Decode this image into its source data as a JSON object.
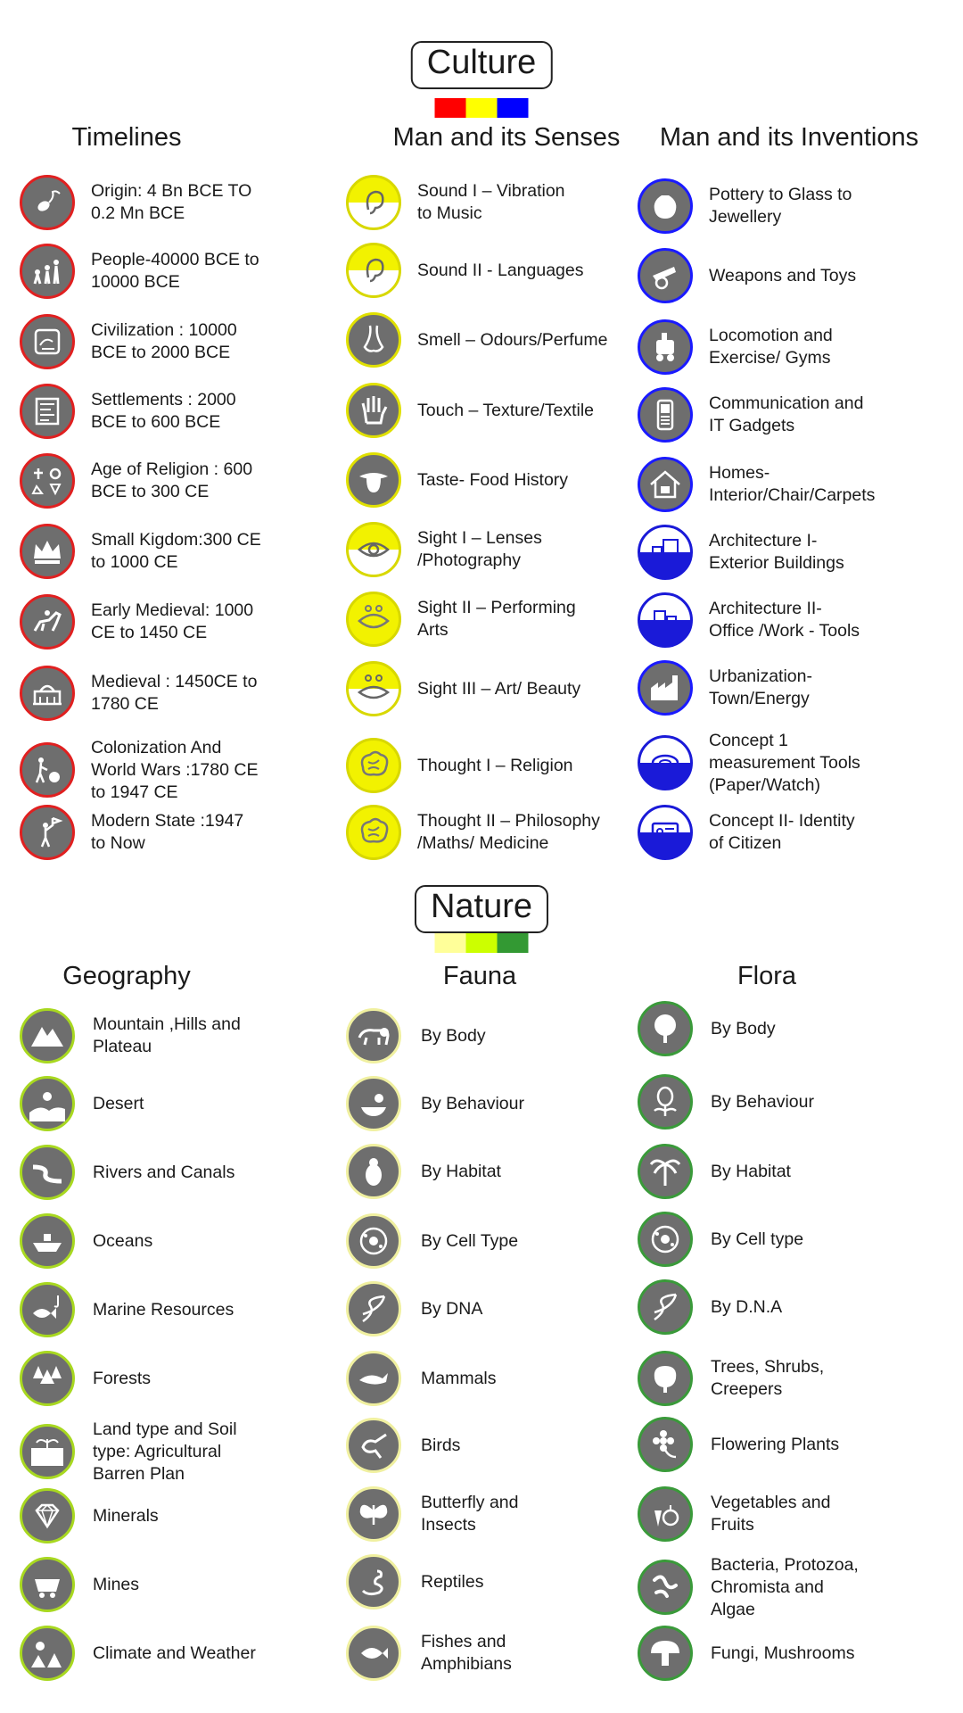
{
  "culture": {
    "title": "Culture",
    "swatches": [
      "#ff0000",
      "#ffff00",
      "#0000ff"
    ],
    "columns": [
      {
        "heading": "Timelines",
        "items": [
          {
            "label": "Origin: 4 Bn BCE TO\n0.2 Mn BCE",
            "icon": "sperm-cell-icon"
          },
          {
            "label": "People-40000 BCE to\n10000  BCE",
            "icon": "evolution-icon"
          },
          {
            "label": "Civilization :  10000\nBCE to 2000  BCE",
            "icon": "seal-tablet-icon"
          },
          {
            "label": "Settlements : 2000\nBCE to 600  BCE",
            "icon": "carved-stone-icon"
          },
          {
            "label": "Age of Religion :  600\nBCE to 300  CE",
            "icon": "religious-symbols-icon"
          },
          {
            "label": "Small Kigdom:300 CE\nto 1000  CE",
            "icon": "crown-icon"
          },
          {
            "label": "Early Medieval: 1000\nCE to 1450  CE",
            "icon": "horse-rider-icon"
          },
          {
            "label": "Medieval : 1450CE  to\n1780 CE",
            "icon": "palace-icon"
          },
          {
            "label": "Colonization And\nWorld Wars :1780  CE\nto 1947  CE",
            "icon": "cannon-soldier-icon"
          },
          {
            "label": "Modern State :1947\nto Now",
            "icon": "flag-person-icon"
          }
        ]
      },
      {
        "heading": "Man and its Senses",
        "items": [
          {
            "label": "Sound I – Vibration\nto Music",
            "icon": "ear-icon"
          },
          {
            "label": "Sound II - Languages",
            "icon": "ear-icon"
          },
          {
            "label": "Smell – Odours/Perfume",
            "icon": "nose-icon"
          },
          {
            "label": "Touch – Texture/Textile",
            "icon": "hand-icon"
          },
          {
            "label": "Taste- Food History",
            "icon": "tongue-icon"
          },
          {
            "label": "Sight I – Lenses\n/Photography",
            "icon": "eye-icon"
          },
          {
            "label": "Sight II – Performing\nArts",
            "icon": "eye-icon"
          },
          {
            "label": "Sight III – Art/ Beauty",
            "icon": "eye-icon"
          },
          {
            "label": "Thought I – Religion",
            "icon": "brain-icon"
          },
          {
            "label": "Thought II – Philosophy\n/Maths/ Medicine",
            "icon": "brain-icon"
          }
        ]
      },
      {
        "heading": "Man and its Inventions",
        "items": [
          {
            "label": "Pottery to Glass to\nJewellery",
            "icon": "pot-icon"
          },
          {
            "label": "Weapons and Toys",
            "icon": "cannon-icon"
          },
          {
            "label": "Locomotion and\nExercise/ Gyms",
            "icon": "locomotive-icon"
          },
          {
            "label": "Communication and\nIT Gadgets",
            "icon": "mobile-phone-icon"
          },
          {
            "label": "Homes-\nInterior/Chair/Carpets",
            "icon": "house-icon"
          },
          {
            "label": "Architecture I-\nExterior Buildings",
            "icon": "buildings-icon"
          },
          {
            "label": "Architecture II-\nOffice /Work - Tools",
            "icon": "office-buildings-icon"
          },
          {
            "label": "Urbanization-\nTown/Energy",
            "icon": "factory-icon"
          },
          {
            "label": "Concept 1\nmeasurement Tools\n (Paper/Watch)",
            "icon": "measuring-tape-icon"
          },
          {
            "label": "Concept II- Identity\nof Citizen",
            "icon": "id-card-icon"
          }
        ]
      }
    ]
  },
  "nature": {
    "title": "Nature",
    "swatches": [
      "#ffff99",
      "#ccff00",
      "#339933"
    ],
    "columns": [
      {
        "heading": "Geography",
        "items": [
          {
            "label": "Mountain ,Hills and\nPlateau",
            "icon": "mountain-icon"
          },
          {
            "label": "Desert",
            "icon": "desert-icon"
          },
          {
            "label": "Rivers and Canals",
            "icon": "river-icon"
          },
          {
            "label": "Oceans",
            "icon": "ship-icon"
          },
          {
            "label": "Marine Resources",
            "icon": "fish-hook-icon"
          },
          {
            "label": "Forests",
            "icon": "forest-icon"
          },
          {
            "label": "Land type and Soil\ntype: Agricultural\nBarren Plan",
            "icon": "soil-sprout-icon"
          },
          {
            "label": "Minerals",
            "icon": "diamond-icon"
          },
          {
            "label": "Mines",
            "icon": "mine-cart-icon"
          },
          {
            "label": "Climate and Weather",
            "icon": "weather-icon"
          }
        ]
      },
      {
        "heading": "Fauna",
        "items": [
          {
            "label": "By Body",
            "icon": "lion-icon"
          },
          {
            "label": "By Behaviour",
            "icon": "bird-nest-icon"
          },
          {
            "label": "By Habitat",
            "icon": "penguin-icon"
          },
          {
            "label": "By Cell Type",
            "icon": "cell-icon"
          },
          {
            "label": "By DNA",
            "icon": "dna-icon"
          },
          {
            "label": "Mammals",
            "icon": "whale-icon"
          },
          {
            "label": "Birds",
            "icon": "hummingbird-icon"
          },
          {
            "label": "Butterfly and\nInsects",
            "icon": "butterfly-icon"
          },
          {
            "label": "Reptiles",
            "icon": "snake-icon"
          },
          {
            "label": "Fishes and\nAmphibians",
            "icon": "fish-icon"
          }
        ]
      },
      {
        "heading": "Flora",
        "items": [
          {
            "label": "By Body",
            "icon": "tree-icon"
          },
          {
            "label": "By Behaviour",
            "icon": "venus-flytrap-icon"
          },
          {
            "label": "By Habitat",
            "icon": "palm-tree-icon"
          },
          {
            "label": "By Cell type",
            "icon": "cell-icon"
          },
          {
            "label": "By D.N.A",
            "icon": "dna-icon"
          },
          {
            "label": "Trees, Shrubs,\nCreepers",
            "icon": "shrub-icon"
          },
          {
            "label": "Flowering Plants",
            "icon": "flower-icon"
          },
          {
            "label": "Vegetables and\nFruits",
            "icon": "vegetables-icon"
          },
          {
            "label": "Bacteria, Protozoa,\nChromista and\nAlgae",
            "icon": "bacteria-icon"
          },
          {
            "label": "Fungi, Mushrooms",
            "icon": "mushroom-icon"
          }
        ]
      }
    ]
  }
}
